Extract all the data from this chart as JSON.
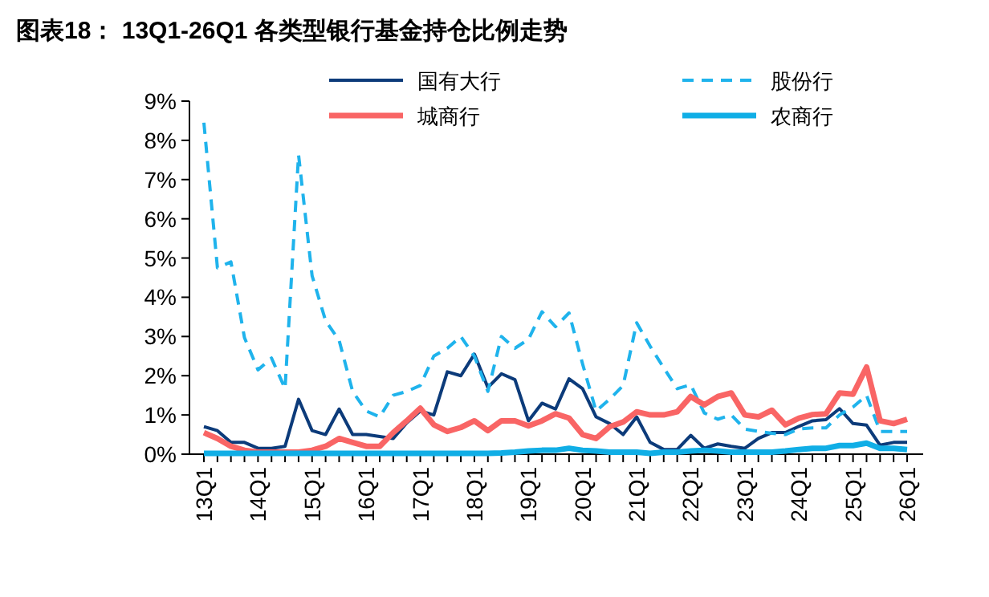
{
  "chart_data": {
    "type": "line",
    "title": "图表18：  13Q1-26Q1 各类型银行基金持仓比例走势",
    "categories": [
      "13Q1",
      null,
      null,
      null,
      "14Q1",
      null,
      null,
      null,
      "15Q1",
      null,
      null,
      null,
      "16Q1",
      null,
      null,
      null,
      "17Q1",
      null,
      null,
      null,
      "18Q1",
      null,
      null,
      null,
      "19Q1",
      null,
      null,
      null,
      "20Q1",
      null,
      null,
      null,
      "21Q1",
      null,
      null,
      null,
      "22Q1",
      null,
      null,
      null,
      "23Q1",
      null,
      null,
      null,
      "24Q1",
      null,
      null,
      null,
      "25Q1",
      null,
      null,
      null,
      "26Q1"
    ],
    "series": [
      {
        "name": "国有大行",
        "color": "#0c3b7a",
        "line_style": "solid",
        "values": [
          0.7,
          0.6,
          0.3,
          0.3,
          0.15,
          0.15,
          0.2,
          1.4,
          0.6,
          0.5,
          1.15,
          0.5,
          0.5,
          0.45,
          0.4,
          0.8,
          1.1,
          1.0,
          2.1,
          2.0,
          2.55,
          1.7,
          2.05,
          1.9,
          0.85,
          1.3,
          1.15,
          1.92,
          1.67,
          0.95,
          0.78,
          0.5,
          0.95,
          0.3,
          0.12,
          0.12,
          0.48,
          0.15,
          0.26,
          0.2,
          0.15,
          0.4,
          0.55,
          0.55,
          0.71,
          0.85,
          0.88,
          1.16,
          0.78,
          0.74,
          0.23,
          0.3,
          0.3
        ]
      },
      {
        "name": "股份行",
        "color": "#1fb3ec",
        "line_style": "dashed",
        "values": [
          8.45,
          4.75,
          4.9,
          2.97,
          2.15,
          2.45,
          1.67,
          7.63,
          4.55,
          3.4,
          2.9,
          1.6,
          1.1,
          0.95,
          1.5,
          1.6,
          1.75,
          2.5,
          2.7,
          3.0,
          2.5,
          1.6,
          3.0,
          2.7,
          2.93,
          3.63,
          3.25,
          3.6,
          2.3,
          1.1,
          1.4,
          1.75,
          3.35,
          2.75,
          2.2,
          1.67,
          1.77,
          1.05,
          0.89,
          1.0,
          0.64,
          0.58,
          0.53,
          0.5,
          0.64,
          0.67,
          0.67,
          1.0,
          1.2,
          1.5,
          0.58,
          0.58,
          0.58
        ]
      },
      {
        "name": "城商行",
        "color": "#f96565",
        "line_style": "solid",
        "values": [
          0.55,
          0.4,
          0.2,
          0.1,
          0.05,
          0.05,
          0.05,
          0.05,
          0.1,
          0.2,
          0.4,
          0.3,
          0.2,
          0.2,
          0.55,
          0.85,
          1.17,
          0.75,
          0.58,
          0.68,
          0.85,
          0.6,
          0.85,
          0.85,
          0.72,
          0.85,
          1.03,
          0.92,
          0.5,
          0.4,
          0.7,
          0.82,
          1.08,
          1.0,
          1.0,
          1.08,
          1.47,
          1.26,
          1.47,
          1.56,
          1.0,
          0.95,
          1.12,
          0.75,
          0.92,
          1.01,
          1.03,
          1.56,
          1.53,
          2.22,
          0.85,
          0.78,
          0.89
        ]
      },
      {
        "name": "农商行",
        "color": "#10aee6",
        "line_style": "solid",
        "values": [
          0.02,
          0.02,
          0.02,
          0.02,
          0.02,
          0.02,
          0.02,
          0.02,
          0.02,
          0.02,
          0.02,
          0.02,
          0.02,
          0.02,
          0.02,
          0.02,
          0.02,
          0.02,
          0.02,
          0.02,
          0.02,
          0.02,
          0.03,
          0.05,
          0.08,
          0.1,
          0.1,
          0.15,
          0.1,
          0.08,
          0.05,
          0.05,
          0.05,
          0.02,
          0.05,
          0.05,
          0.08,
          0.1,
          0.08,
          0.05,
          0.05,
          0.05,
          0.05,
          0.08,
          0.12,
          0.15,
          0.15,
          0.22,
          0.22,
          0.28,
          0.15,
          0.15,
          0.12
        ]
      }
    ],
    "ylim": [
      0,
      9
    ],
    "yticks": [
      {
        "value": 0,
        "label": "0%"
      },
      {
        "value": 1,
        "label": "1%"
      },
      {
        "value": 2,
        "label": "2%"
      },
      {
        "value": 3,
        "label": "3%"
      },
      {
        "value": 4,
        "label": "4%"
      },
      {
        "value": 5,
        "label": "5%"
      },
      {
        "value": 6,
        "label": "6%"
      },
      {
        "value": 7,
        "label": "7%"
      },
      {
        "value": 8,
        "label": "8%"
      },
      {
        "value": 9,
        "label": "9%"
      }
    ],
    "grid": false,
    "legend": "top",
    "marker": "none"
  }
}
